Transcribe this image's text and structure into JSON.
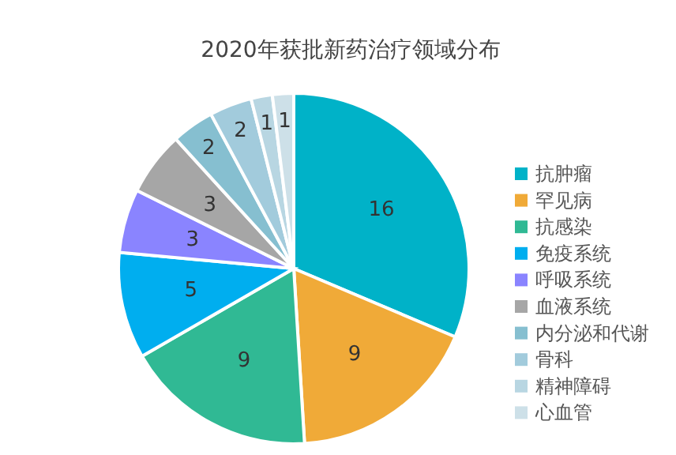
{
  "chart_data": {
    "type": "pie",
    "title": "2020年获批新药治疗领域分布",
    "categories": [
      "抗肿瘤",
      "罕见病",
      "抗感染",
      "免疫系统",
      "呼吸系统",
      "血液系统",
      "内分泌和代谢",
      "骨科",
      "精神障碍",
      "心血管"
    ],
    "values": [
      16,
      9,
      9,
      5,
      3,
      3,
      2,
      2,
      1,
      1
    ],
    "colors": [
      "#00b2c8",
      "#f0aa38",
      "#30b994",
      "#00aeef",
      "#8a84ff",
      "#a6a6a6",
      "#86bfd0",
      "#a2cbdc",
      "#b8d6e2",
      "#cde0e8"
    ],
    "data_labels": true,
    "legend": "right"
  }
}
